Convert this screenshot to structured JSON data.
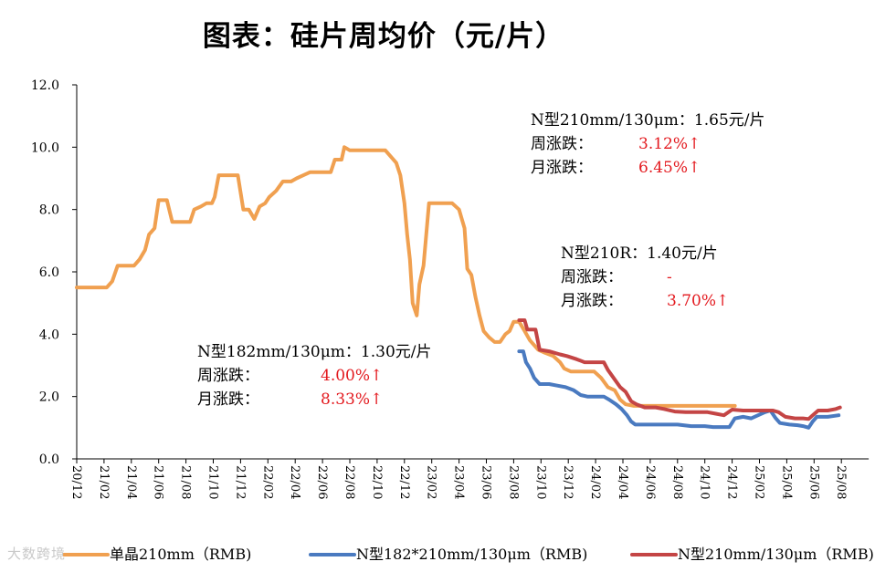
{
  "title": "图表：硅片周均价（元/片）",
  "chart_data": {
    "type": "line",
    "ylim": [
      0,
      12
    ],
    "yticks": [
      "0.0",
      "2.0",
      "4.0",
      "6.0",
      "8.0",
      "10.0",
      "12.0"
    ],
    "xlabels": [
      "20/12",
      "21/02",
      "21/04",
      "21/06",
      "21/08",
      "21/10",
      "21/12",
      "22/02",
      "22/04",
      "22/06",
      "22/08",
      "22/10",
      "22/12",
      "23/02",
      "23/04",
      "23/06",
      "23/08",
      "23/10",
      "23/12",
      "24/02",
      "24/04",
      "24/06",
      "24/08",
      "24/10",
      "24/12",
      "25/02",
      "25/04",
      "25/06",
      "25/08"
    ],
    "series": [
      {
        "name": "单晶210mm（RMB)",
        "color": "#f0a050",
        "points": [
          [
            0,
            5.5
          ],
          [
            0.35,
            5.5
          ],
          [
            0.7,
            5.5
          ],
          [
            1.1,
            5.5
          ],
          [
            1.3,
            5.7
          ],
          [
            1.5,
            6.2
          ],
          [
            1.85,
            6.2
          ],
          [
            2.1,
            6.2
          ],
          [
            2.3,
            6.4
          ],
          [
            2.5,
            6.7
          ],
          [
            2.65,
            7.2
          ],
          [
            2.85,
            7.4
          ],
          [
            3.0,
            8.3
          ],
          [
            3.3,
            8.3
          ],
          [
            3.5,
            7.6
          ],
          [
            3.85,
            7.6
          ],
          [
            4.15,
            7.6
          ],
          [
            4.3,
            8.0
          ],
          [
            4.55,
            8.1
          ],
          [
            4.75,
            8.2
          ],
          [
            4.95,
            8.2
          ],
          [
            5.05,
            8.4
          ],
          [
            5.2,
            9.1
          ],
          [
            5.55,
            9.1
          ],
          [
            5.9,
            9.1
          ],
          [
            6.1,
            8.0
          ],
          [
            6.3,
            8.0
          ],
          [
            6.5,
            7.7
          ],
          [
            6.7,
            8.1
          ],
          [
            6.9,
            8.2
          ],
          [
            7.05,
            8.4
          ],
          [
            7.3,
            8.6
          ],
          [
            7.55,
            8.9
          ],
          [
            7.85,
            8.9
          ],
          [
            8.05,
            9.0
          ],
          [
            8.3,
            9.1
          ],
          [
            8.55,
            9.2
          ],
          [
            8.9,
            9.2
          ],
          [
            9.3,
            9.2
          ],
          [
            9.45,
            9.6
          ],
          [
            9.7,
            9.6
          ],
          [
            9.8,
            10.0
          ],
          [
            10.0,
            9.9
          ],
          [
            10.4,
            9.9
          ],
          [
            10.8,
            9.9
          ],
          [
            11.1,
            9.9
          ],
          [
            11.3,
            9.9
          ],
          [
            11.5,
            9.7
          ],
          [
            11.7,
            9.5
          ],
          [
            11.85,
            9.1
          ],
          [
            12.0,
            8.2
          ],
          [
            12.1,
            7.2
          ],
          [
            12.2,
            6.4
          ],
          [
            12.3,
            5.0
          ],
          [
            12.45,
            4.6
          ],
          [
            12.55,
            5.6
          ],
          [
            12.7,
            6.2
          ],
          [
            12.8,
            7.2
          ],
          [
            12.9,
            8.2
          ],
          [
            13.3,
            8.2
          ],
          [
            13.75,
            8.2
          ],
          [
            14.0,
            8.0
          ],
          [
            14.2,
            7.4
          ],
          [
            14.3,
            6.1
          ],
          [
            14.45,
            5.9
          ],
          [
            14.6,
            5.2
          ],
          [
            14.75,
            4.6
          ],
          [
            14.9,
            4.1
          ],
          [
            15.1,
            3.9
          ],
          [
            15.3,
            3.75
          ],
          [
            15.5,
            3.75
          ],
          [
            15.7,
            4.0
          ],
          [
            15.85,
            4.1
          ],
          [
            16.0,
            4.4
          ],
          [
            16.2,
            4.4
          ],
          [
            16.4,
            4.1
          ],
          [
            16.6,
            3.8
          ],
          [
            16.9,
            3.5
          ],
          [
            17.15,
            3.4
          ],
          [
            17.45,
            3.3
          ],
          [
            17.7,
            3.1
          ],
          [
            17.85,
            2.9
          ],
          [
            18.1,
            2.8
          ],
          [
            18.5,
            2.8
          ],
          [
            18.95,
            2.8
          ],
          [
            19.2,
            2.6
          ],
          [
            19.45,
            2.3
          ],
          [
            19.7,
            2.2
          ],
          [
            19.9,
            1.9
          ],
          [
            20.1,
            1.75
          ],
          [
            20.4,
            1.7
          ],
          [
            20.8,
            1.7
          ],
          [
            21.5,
            1.7
          ],
          [
            22.5,
            1.7
          ],
          [
            23.3,
            1.7
          ],
          [
            24.1,
            1.7
          ]
        ]
      },
      {
        "name": "N型182*210mm/130μm（RMB)",
        "color": "#4a7ac0",
        "points": [
          [
            16.2,
            3.45
          ],
          [
            16.35,
            3.45
          ],
          [
            16.45,
            3.1
          ],
          [
            16.6,
            2.9
          ],
          [
            16.75,
            2.6
          ],
          [
            16.95,
            2.4
          ],
          [
            17.3,
            2.4
          ],
          [
            17.6,
            2.35
          ],
          [
            17.9,
            2.3
          ],
          [
            18.2,
            2.2
          ],
          [
            18.45,
            2.05
          ],
          [
            18.7,
            2.0
          ],
          [
            19.0,
            2.0
          ],
          [
            19.3,
            2.0
          ],
          [
            19.5,
            1.9
          ],
          [
            19.75,
            1.75
          ],
          [
            19.95,
            1.6
          ],
          [
            20.15,
            1.4
          ],
          [
            20.3,
            1.2
          ],
          [
            20.45,
            1.1
          ],
          [
            20.9,
            1.1
          ],
          [
            21.5,
            1.1
          ],
          [
            22.0,
            1.1
          ],
          [
            22.5,
            1.05
          ],
          [
            23.0,
            1.05
          ],
          [
            23.3,
            1.02
          ],
          [
            23.6,
            1.02
          ],
          [
            23.9,
            1.02
          ],
          [
            24.1,
            1.3
          ],
          [
            24.4,
            1.35
          ],
          [
            24.7,
            1.3
          ],
          [
            24.95,
            1.4
          ],
          [
            25.2,
            1.5
          ],
          [
            25.4,
            1.55
          ],
          [
            25.6,
            1.3
          ],
          [
            25.75,
            1.15
          ],
          [
            26.1,
            1.1
          ],
          [
            26.4,
            1.08
          ],
          [
            26.6,
            1.05
          ],
          [
            26.8,
            1.0
          ],
          [
            26.95,
            1.2
          ],
          [
            27.1,
            1.35
          ],
          [
            27.5,
            1.35
          ],
          [
            27.9,
            1.4
          ]
        ]
      },
      {
        "name": "N型210mm/130μm（RMB)",
        "color": "#c44545",
        "points": [
          [
            16.2,
            4.45
          ],
          [
            16.4,
            4.45
          ],
          [
            16.5,
            4.15
          ],
          [
            16.8,
            4.15
          ],
          [
            16.95,
            3.5
          ],
          [
            17.3,
            3.45
          ],
          [
            17.7,
            3.35
          ],
          [
            17.95,
            3.3
          ],
          [
            18.3,
            3.2
          ],
          [
            18.6,
            3.1
          ],
          [
            19.0,
            3.1
          ],
          [
            19.3,
            3.1
          ],
          [
            19.45,
            2.85
          ],
          [
            19.7,
            2.55
          ],
          [
            19.9,
            2.3
          ],
          [
            20.1,
            2.15
          ],
          [
            20.3,
            1.85
          ],
          [
            20.5,
            1.75
          ],
          [
            20.8,
            1.65
          ],
          [
            21.2,
            1.65
          ],
          [
            21.5,
            1.6
          ],
          [
            21.9,
            1.52
          ],
          [
            22.3,
            1.5
          ],
          [
            22.7,
            1.5
          ],
          [
            23.1,
            1.5
          ],
          [
            23.4,
            1.45
          ],
          [
            23.7,
            1.4
          ],
          [
            24.0,
            1.58
          ],
          [
            24.4,
            1.55
          ],
          [
            24.8,
            1.55
          ],
          [
            25.2,
            1.55
          ],
          [
            25.5,
            1.55
          ],
          [
            25.7,
            1.5
          ],
          [
            25.95,
            1.35
          ],
          [
            26.3,
            1.3
          ],
          [
            26.6,
            1.3
          ],
          [
            26.8,
            1.28
          ],
          [
            26.95,
            1.4
          ],
          [
            27.15,
            1.55
          ],
          [
            27.5,
            1.55
          ],
          [
            27.8,
            1.6
          ],
          [
            27.95,
            1.65
          ]
        ]
      }
    ]
  },
  "annotations": [
    {
      "heading": "N型210mm/130μm：1.65元/片",
      "week_label": "周涨跌：",
      "week_value": "3.12%↑",
      "month_label": "月涨跌：",
      "month_value": "6.45%↑"
    },
    {
      "heading": "N型210R：1.40元/片",
      "week_label": "周涨跌：",
      "week_value": "-",
      "month_label": "月涨跌：",
      "month_value": "3.70%↑"
    },
    {
      "heading": "N型182mm/130μm：1.30元/片",
      "week_label": "周涨跌：",
      "week_value": "4.00%↑",
      "month_label": "月涨跌：",
      "month_value": "8.33%↑"
    }
  ],
  "watermark": "大数跨境"
}
